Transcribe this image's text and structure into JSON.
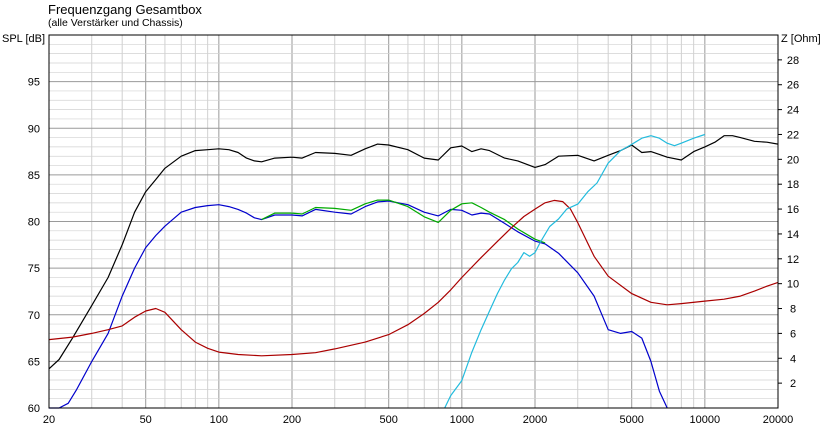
{
  "chart_data": {
    "type": "line",
    "title": "Frequenzgang Gesamtbox",
    "subtitle": "(alle Verstärker und Chassis)",
    "ylabel": "SPL [dB]",
    "y2label": "Z [Ohm]",
    "xscale": "log",
    "xlim": [
      20,
      20000
    ],
    "ylim": [
      60,
      100
    ],
    "y2lim": [
      0,
      30
    ],
    "x_ticks": [
      20,
      50,
      100,
      200,
      500,
      1000,
      2000,
      5000,
      10000,
      20000
    ],
    "y_ticks": [
      60,
      65,
      70,
      75,
      80,
      85,
      90,
      95
    ],
    "y2_ticks": [
      2,
      4,
      6,
      8,
      10,
      12,
      14,
      16,
      18,
      20,
      22,
      24,
      26,
      28
    ],
    "grid": true,
    "series": [
      {
        "color": "#000000",
        "axis": "left",
        "points": [
          [
            20,
            64.2
          ],
          [
            22,
            65.2
          ],
          [
            25,
            67.5
          ],
          [
            30,
            71
          ],
          [
            35,
            74
          ],
          [
            40,
            77.5
          ],
          [
            45,
            81
          ],
          [
            50,
            83.2
          ],
          [
            55,
            84.5
          ],
          [
            60,
            85.7
          ],
          [
            70,
            87
          ],
          [
            80,
            87.6
          ],
          [
            90,
            87.7
          ],
          [
            100,
            87.8
          ],
          [
            110,
            87.7
          ],
          [
            120,
            87.4
          ],
          [
            130,
            86.8
          ],
          [
            140,
            86.5
          ],
          [
            150,
            86.4
          ],
          [
            170,
            86.8
          ],
          [
            200,
            86.9
          ],
          [
            220,
            86.8
          ],
          [
            250,
            87.4
          ],
          [
            300,
            87.3
          ],
          [
            350,
            87.1
          ],
          [
            400,
            87.8
          ],
          [
            450,
            88.3
          ],
          [
            500,
            88.2
          ],
          [
            600,
            87.7
          ],
          [
            700,
            86.8
          ],
          [
            800,
            86.6
          ],
          [
            900,
            87.9
          ],
          [
            1000,
            88.1
          ],
          [
            1100,
            87.5
          ],
          [
            1200,
            87.8
          ],
          [
            1300,
            87.6
          ],
          [
            1500,
            86.8
          ],
          [
            1700,
            86.5
          ],
          [
            2000,
            85.8
          ],
          [
            2200,
            86.1
          ],
          [
            2500,
            87
          ],
          [
            3000,
            87.1
          ],
          [
            3500,
            86.5
          ],
          [
            4000,
            87.1
          ],
          [
            4500,
            87.6
          ],
          [
            5000,
            88.2
          ],
          [
            5500,
            87.4
          ],
          [
            6000,
            87.5
          ],
          [
            6500,
            87.2
          ],
          [
            7000,
            86.9
          ],
          [
            8000,
            86.6
          ],
          [
            9000,
            87.5
          ],
          [
            10000,
            88
          ],
          [
            11000,
            88.5
          ],
          [
            12000,
            89.2
          ],
          [
            13000,
            89.2
          ],
          [
            14000,
            89
          ],
          [
            16000,
            88.6
          ],
          [
            18000,
            88.5
          ],
          [
            20000,
            88.3
          ]
        ]
      },
      {
        "color": "#0000cc",
        "axis": "left",
        "points": [
          [
            20,
            60
          ],
          [
            22,
            60
          ],
          [
            24,
            60.5
          ],
          [
            26,
            62
          ],
          [
            30,
            65
          ],
          [
            35,
            68
          ],
          [
            40,
            72
          ],
          [
            45,
            75
          ],
          [
            50,
            77.2
          ],
          [
            55,
            78.5
          ],
          [
            60,
            79.5
          ],
          [
            70,
            81
          ],
          [
            80,
            81.5
          ],
          [
            90,
            81.7
          ],
          [
            100,
            81.8
          ],
          [
            110,
            81.6
          ],
          [
            120,
            81.3
          ],
          [
            130,
            80.9
          ],
          [
            140,
            80.4
          ],
          [
            150,
            80.2
          ],
          [
            170,
            80.7
          ],
          [
            200,
            80.7
          ],
          [
            220,
            80.6
          ],
          [
            250,
            81.3
          ],
          [
            300,
            81
          ],
          [
            350,
            80.8
          ],
          [
            400,
            81.6
          ],
          [
            450,
            82.1
          ],
          [
            500,
            82.2
          ],
          [
            600,
            81.8
          ],
          [
            700,
            81
          ],
          [
            800,
            80.6
          ],
          [
            900,
            81.3
          ],
          [
            1000,
            81.2
          ],
          [
            1100,
            80.7
          ],
          [
            1200,
            80.9
          ],
          [
            1300,
            80.8
          ],
          [
            1500,
            79.8
          ],
          [
            1700,
            78.9
          ],
          [
            2000,
            77.9
          ],
          [
            2200,
            77.6
          ],
          [
            2500,
            76.6
          ],
          [
            3000,
            74.5
          ],
          [
            3500,
            72
          ],
          [
            4000,
            68.4
          ],
          [
            4500,
            68
          ],
          [
            5000,
            68.2
          ],
          [
            5500,
            67.5
          ],
          [
            6000,
            65
          ],
          [
            6500,
            61.8
          ],
          [
            7000,
            60
          ]
        ]
      },
      {
        "color": "#00aa00",
        "axis": "left",
        "points": [
          [
            150,
            80.2
          ],
          [
            170,
            80.9
          ],
          [
            200,
            80.9
          ],
          [
            220,
            80.8
          ],
          [
            250,
            81.5
          ],
          [
            300,
            81.4
          ],
          [
            350,
            81.2
          ],
          [
            400,
            81.9
          ],
          [
            450,
            82.3
          ],
          [
            500,
            82.3
          ],
          [
            600,
            81.6
          ],
          [
            700,
            80.5
          ],
          [
            800,
            79.9
          ],
          [
            900,
            81.2
          ],
          [
            1000,
            81.9
          ],
          [
            1100,
            82
          ],
          [
            1200,
            81.5
          ],
          [
            1300,
            81
          ],
          [
            1500,
            80.2
          ],
          [
            1700,
            79.2
          ],
          [
            2000,
            78.1
          ],
          [
            2200,
            77.7
          ]
        ]
      },
      {
        "color": "#aa0000",
        "axis": "right",
        "points": [
          [
            20,
            5.5
          ],
          [
            25,
            5.7
          ],
          [
            30,
            6.0
          ],
          [
            35,
            6.3
          ],
          [
            40,
            6.6
          ],
          [
            45,
            7.3
          ],
          [
            50,
            7.8
          ],
          [
            55,
            8.0
          ],
          [
            60,
            7.7
          ],
          [
            70,
            6.3
          ],
          [
            80,
            5.3
          ],
          [
            90,
            4.8
          ],
          [
            100,
            4.5
          ],
          [
            120,
            4.3
          ],
          [
            150,
            4.2
          ],
          [
            200,
            4.3
          ],
          [
            250,
            4.45
          ],
          [
            300,
            4.75
          ],
          [
            400,
            5.3
          ],
          [
            500,
            5.9
          ],
          [
            600,
            6.7
          ],
          [
            700,
            7.6
          ],
          [
            800,
            8.5
          ],
          [
            900,
            9.5
          ],
          [
            1000,
            10.5
          ],
          [
            1200,
            12.1
          ],
          [
            1400,
            13.4
          ],
          [
            1600,
            14.5
          ],
          [
            1800,
            15.4
          ],
          [
            2000,
            16.0
          ],
          [
            2200,
            16.5
          ],
          [
            2400,
            16.7
          ],
          [
            2600,
            16.6
          ],
          [
            2800,
            16.0
          ],
          [
            3000,
            14.9
          ],
          [
            3500,
            12.2
          ],
          [
            4000,
            10.6
          ],
          [
            5000,
            9.2
          ],
          [
            6000,
            8.5
          ],
          [
            7000,
            8.3
          ],
          [
            8000,
            8.4
          ],
          [
            10000,
            8.6
          ],
          [
            12000,
            8.75
          ],
          [
            14000,
            9.0
          ],
          [
            16000,
            9.4
          ],
          [
            18000,
            9.8
          ],
          [
            20000,
            10.1
          ]
        ]
      },
      {
        "color": "#22bbdd",
        "axis": "right",
        "points": [
          [
            850,
            0
          ],
          [
            900,
            1.0
          ],
          [
            1000,
            2.2
          ],
          [
            1100,
            4.5
          ],
          [
            1200,
            6.3
          ],
          [
            1300,
            7.8
          ],
          [
            1400,
            9.2
          ],
          [
            1500,
            10.3
          ],
          [
            1600,
            11.2
          ],
          [
            1700,
            11.7
          ],
          [
            1800,
            12.5
          ],
          [
            1900,
            12.2
          ],
          [
            2000,
            12.5
          ],
          [
            2100,
            13.3
          ],
          [
            2300,
            14.6
          ],
          [
            2500,
            15.2
          ],
          [
            2700,
            16.0
          ],
          [
            3000,
            16.4
          ],
          [
            3300,
            17.4
          ],
          [
            3600,
            18.1
          ],
          [
            4000,
            19.7
          ],
          [
            4500,
            20.7
          ],
          [
            5000,
            21.2
          ],
          [
            5500,
            21.7
          ],
          [
            6000,
            21.9
          ],
          [
            6500,
            21.7
          ],
          [
            7000,
            21.3
          ],
          [
            7500,
            21.1
          ],
          [
            8000,
            21.3
          ],
          [
            9000,
            21.7
          ],
          [
            10000,
            22.0
          ]
        ]
      }
    ]
  }
}
